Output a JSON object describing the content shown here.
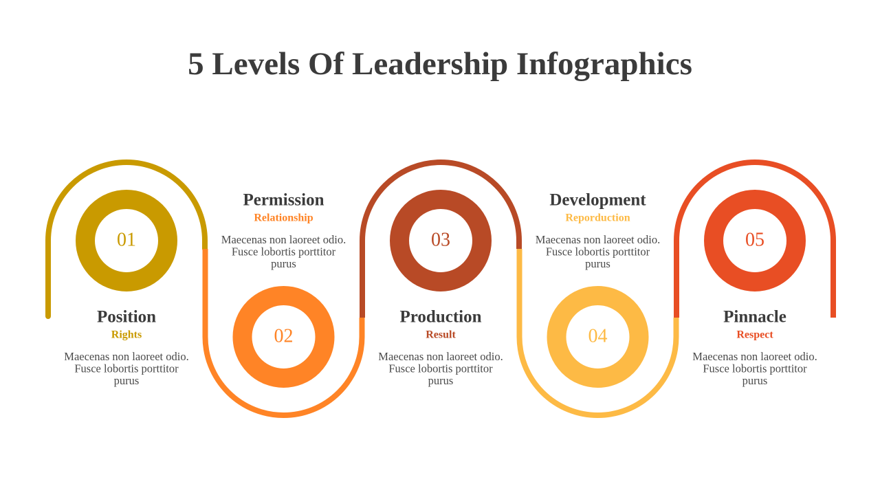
{
  "header": {
    "title": "5 Levels Of Leadership Infographics"
  },
  "levels": [
    {
      "number": "01",
      "title": "Position",
      "subtitle": "Rights",
      "body": [
        "Maecenas non laoreet odio.",
        "Fusce lobortis porttitor",
        "purus"
      ]
    },
    {
      "number": "02",
      "title": "Permission",
      "subtitle": "Relationship",
      "body": [
        "Maecenas non laoreet odio.",
        "Fusce lobortis porttitor",
        "purus"
      ]
    },
    {
      "number": "03",
      "title": "Production",
      "subtitle": "Result",
      "body": [
        "Maecenas non laoreet odio.",
        "Fusce lobortis porttitor",
        "purus"
      ]
    },
    {
      "number": "04",
      "title": "Development",
      "subtitle": "Reporduction",
      "body": [
        "Maecenas non laoreet odio.",
        "Fusce lobortis porttitor",
        "purus"
      ]
    },
    {
      "number": "05",
      "title": "Pinnacle",
      "subtitle": "Respect",
      "body": [
        "Maecenas non laoreet odio.",
        "Fusce lobortis porttitor",
        "purus"
      ]
    }
  ]
}
